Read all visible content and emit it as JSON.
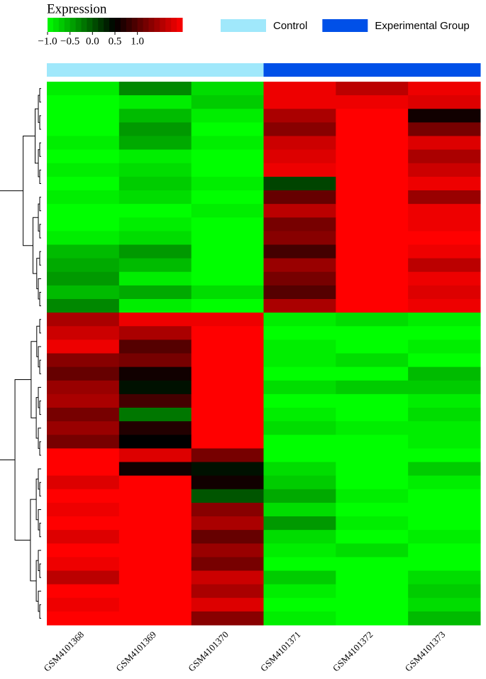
{
  "chart_data": {
    "type": "heatmap",
    "title": "Expression",
    "columns": [
      "GSM4101368",
      "GSM4101369",
      "GSM4101370",
      "GSM4101371",
      "GSM4101372",
      "GSM4101373"
    ],
    "groups": [
      {
        "name": "Control",
        "color": "#a0e8fb",
        "columns": [
          0,
          1,
          2
        ]
      },
      {
        "name": "Experimental Group",
        "color": "#0050e8",
        "columns": [
          3,
          4,
          5
        ]
      }
    ],
    "colormap": [
      "#00ff00",
      "#000000",
      "#ff0000"
    ],
    "zlim": [
      -1,
      2
    ],
    "zticks": [
      {
        "value": -1,
        "label": "−1.0"
      },
      {
        "value": -0.5,
        "label": "−0.5"
      },
      {
        "value": 0,
        "label": "0.0"
      },
      {
        "value": 0.5,
        "label": "0.5"
      },
      {
        "value": 1,
        "label": "1.0"
      }
    ],
    "values": [
      [
        -0.9,
        -0.3,
        -0.8,
        1.9,
        1.6,
        1.9
      ],
      [
        -1,
        -0.9,
        -0.7,
        1.9,
        1.9,
        1.8
      ],
      [
        -1,
        -0.6,
        -0.9,
        1.5,
        2,
        0.6
      ],
      [
        -1,
        -0.4,
        -1,
        1.3,
        2,
        1.2
      ],
      [
        -0.9,
        -0.5,
        -0.9,
        1.7,
        2,
        1.8
      ],
      [
        -1,
        -0.9,
        -1,
        1.8,
        2,
        1.5
      ],
      [
        -0.9,
        -0.8,
        -1,
        1.9,
        2,
        1.7
      ],
      [
        -1,
        -0.7,
        -0.9,
        0.1,
        2,
        1.9
      ],
      [
        -0.9,
        -0.8,
        -1,
        1.1,
        2,
        1.4
      ],
      [
        -1,
        -1,
        -0.9,
        1.6,
        2,
        1.9
      ],
      [
        -1,
        -0.9,
        -1,
        1.2,
        2,
        1.9
      ],
      [
        -0.9,
        -0.8,
        -1,
        1.3,
        2,
        2
      ],
      [
        -0.6,
        -0.4,
        -1,
        0.9,
        2,
        1.9
      ],
      [
        -0.5,
        -0.6,
        -1,
        1.4,
        2,
        1.6
      ],
      [
        -0.4,
        -0.9,
        -1,
        1.2,
        2,
        1.9
      ],
      [
        -0.6,
        -0.5,
        -0.8,
        1,
        2,
        1.8
      ],
      [
        -0.3,
        -0.9,
        -1,
        1.5,
        2,
        1.9
      ],
      [
        1.5,
        1.9,
        1.9,
        -0.9,
        -0.8,
        -0.9
      ],
      [
        1.7,
        1.5,
        2,
        -1,
        -1,
        -1
      ],
      [
        1.9,
        1,
        2,
        -0.9,
        -1,
        -0.9
      ],
      [
        1.3,
        1.2,
        2,
        -0.9,
        -0.8,
        -1
      ],
      [
        1.1,
        0.6,
        2,
        -1,
        -1,
        -0.6
      ],
      [
        1.4,
        0.4,
        2,
        -0.8,
        -0.7,
        -0.7
      ],
      [
        1.5,
        0.9,
        2,
        -1,
        -1,
        -0.9
      ],
      [
        1.2,
        -0.2,
        2,
        -0.9,
        -1,
        -0.8
      ],
      [
        1.4,
        0.7,
        2,
        -0.8,
        -0.9,
        -0.9
      ],
      [
        1.2,
        0.5,
        2,
        -1,
        -1,
        -0.9
      ],
      [
        2,
        1.8,
        1.2,
        -1,
        -1,
        -1
      ],
      [
        2,
        0.6,
        0.4,
        -0.8,
        -1,
        -0.7
      ],
      [
        1.8,
        2,
        0.6,
        -0.7,
        -1,
        -0.9
      ],
      [
        2,
        2,
        0,
        -0.5,
        -0.9,
        -1
      ],
      [
        1.9,
        2,
        1.3,
        -0.8,
        -1,
        -1
      ],
      [
        2,
        2,
        1.5,
        -0.4,
        -0.9,
        -1
      ],
      [
        1.8,
        2,
        1.1,
        -0.8,
        -1,
        -0.9
      ],
      [
        2,
        2,
        1.4,
        -0.9,
        -0.8,
        -1
      ],
      [
        1.9,
        2,
        1.2,
        -1,
        -1,
        -1
      ],
      [
        1.6,
        2,
        1.7,
        -0.7,
        -1,
        -0.8
      ],
      [
        2,
        2,
        1.5,
        -0.9,
        -1,
        -0.7
      ],
      [
        1.9,
        2,
        1.8,
        -1,
        -1,
        -0.8
      ],
      [
        2,
        2,
        1.3,
        -0.9,
        -1,
        -0.6
      ]
    ]
  }
}
